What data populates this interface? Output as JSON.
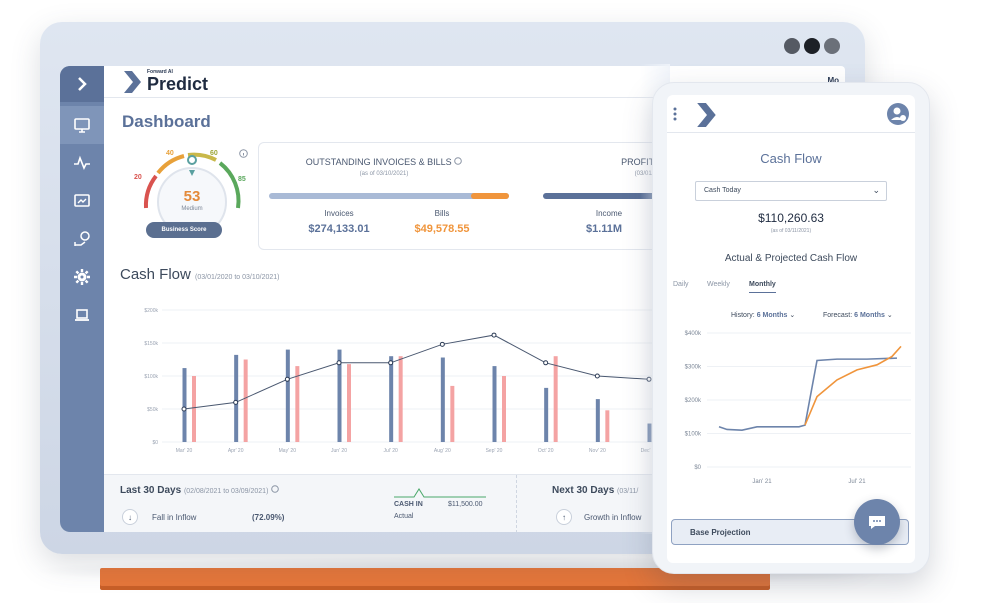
{
  "app": {
    "logo_small": "Forward AI",
    "logo_big": "Predict",
    "top_right": "Mo"
  },
  "sidebar": {
    "items": [
      "monitor-icon",
      "pulse-icon",
      "chart-icon",
      "money-icon",
      "gear-icon",
      "laptop-icon"
    ]
  },
  "dashboard": {
    "title": "Dashboard"
  },
  "gauge": {
    "score": "53",
    "rating": "Medium",
    "button": "Business Score",
    "ticks": [
      "20",
      "40",
      "60",
      "85"
    ]
  },
  "invoices": {
    "title": "OUTSTANDING INVOICES & BILLS",
    "asof": "(as of 03/10/2021)",
    "invoices_label": "Invoices",
    "invoices_value": "$274,133.01",
    "bills_label": "Bills",
    "bills_value": "$49,578.55"
  },
  "profit": {
    "title": "PROFIT & LO",
    "asof": "(03/01/",
    "income_label": "Income",
    "income_value": "$1.11M"
  },
  "cashflow": {
    "title": "Cash Flow",
    "range": "(03/01/2020 to 03/10/2021)"
  },
  "chart_data": {
    "type": "bar",
    "categories": [
      "Mar' 20",
      "Apr' 20",
      "May' 20",
      "Jun' 20",
      "Jul' 20",
      "Aug' 20",
      "Sep' 20",
      "Oct' 20",
      "Nov' 20",
      "Dec' 20"
    ],
    "yticks": [
      "$0",
      "$50k",
      "$100k",
      "$150k",
      "$200k"
    ],
    "ylim": [
      0,
      200
    ],
    "series": [
      {
        "values": [
          112,
          132,
          140,
          140,
          130,
          128,
          115,
          82,
          65,
          28
        ]
      },
      {
        "values": [
          100,
          125,
          115,
          118,
          130,
          85,
          100,
          130,
          48,
          32
        ]
      }
    ],
    "line": [
      50,
      60,
      95,
      120,
      120,
      148,
      162,
      120,
      100,
      95
    ]
  },
  "last30": {
    "title": "Last 30 Days",
    "range": "(02/08/2021 to 03/09/2021)",
    "item": "Fall in Inflow",
    "pct": "(72.09%)",
    "cash_in_label": "CASH IN",
    "cash_in_value": "$11,500.00",
    "actual": "Actual"
  },
  "next30": {
    "title": "Next 30 Days",
    "range": "(03/11/",
    "item": "Growth in Inflow"
  },
  "phone": {
    "title": "Cash Flow",
    "select": "Cash Today",
    "amount": "$110,260.63",
    "asof": "(as of 03/11/2021)",
    "subtitle": "Actual & Projected Cash Flow",
    "tabs": [
      "Daily",
      "Weekly",
      "Monthly"
    ],
    "history_label": "History:",
    "history_value": "6 Months",
    "forecast_label": "Forecast:",
    "forecast_value": "6 Months",
    "chart_y": [
      "$400k",
      "$300k",
      "$200k",
      "$100k",
      "$0"
    ],
    "chart_x": [
      "Jan' 21",
      "Jul' 21"
    ],
    "button": "Base Projection"
  }
}
